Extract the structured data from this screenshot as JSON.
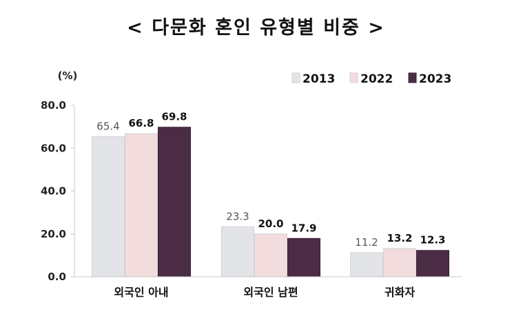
{
  "chart_data": {
    "type": "bar",
    "title": "< 다문화 혼인 유형별 비중 >",
    "ylabel": "(%)",
    "xlabel": "",
    "ylim": [
      0,
      80
    ],
    "yticks": [
      "0.0",
      "20.0",
      "40.0",
      "60.0",
      "80.0"
    ],
    "grid": false,
    "legend_position": "top-right",
    "categories": [
      "외국인 아내",
      "외국인 남편",
      "귀화자"
    ],
    "series": [
      {
        "name": "2013",
        "values": [
          65.4,
          23.3,
          11.2
        ],
        "labels": [
          "65.4",
          "23.3",
          "11.2"
        ],
        "color": "#e3e4e8"
      },
      {
        "name": "2022",
        "values": [
          66.8,
          20.0,
          13.2
        ],
        "labels": [
          "66.8",
          "20.0",
          "13.2"
        ],
        "color": "#f3dcdd"
      },
      {
        "name": "2023",
        "values": [
          69.8,
          17.9,
          12.3
        ],
        "labels": [
          "69.8",
          "17.9",
          "12.3"
        ],
        "color": "#4a2c44"
      }
    ]
  }
}
